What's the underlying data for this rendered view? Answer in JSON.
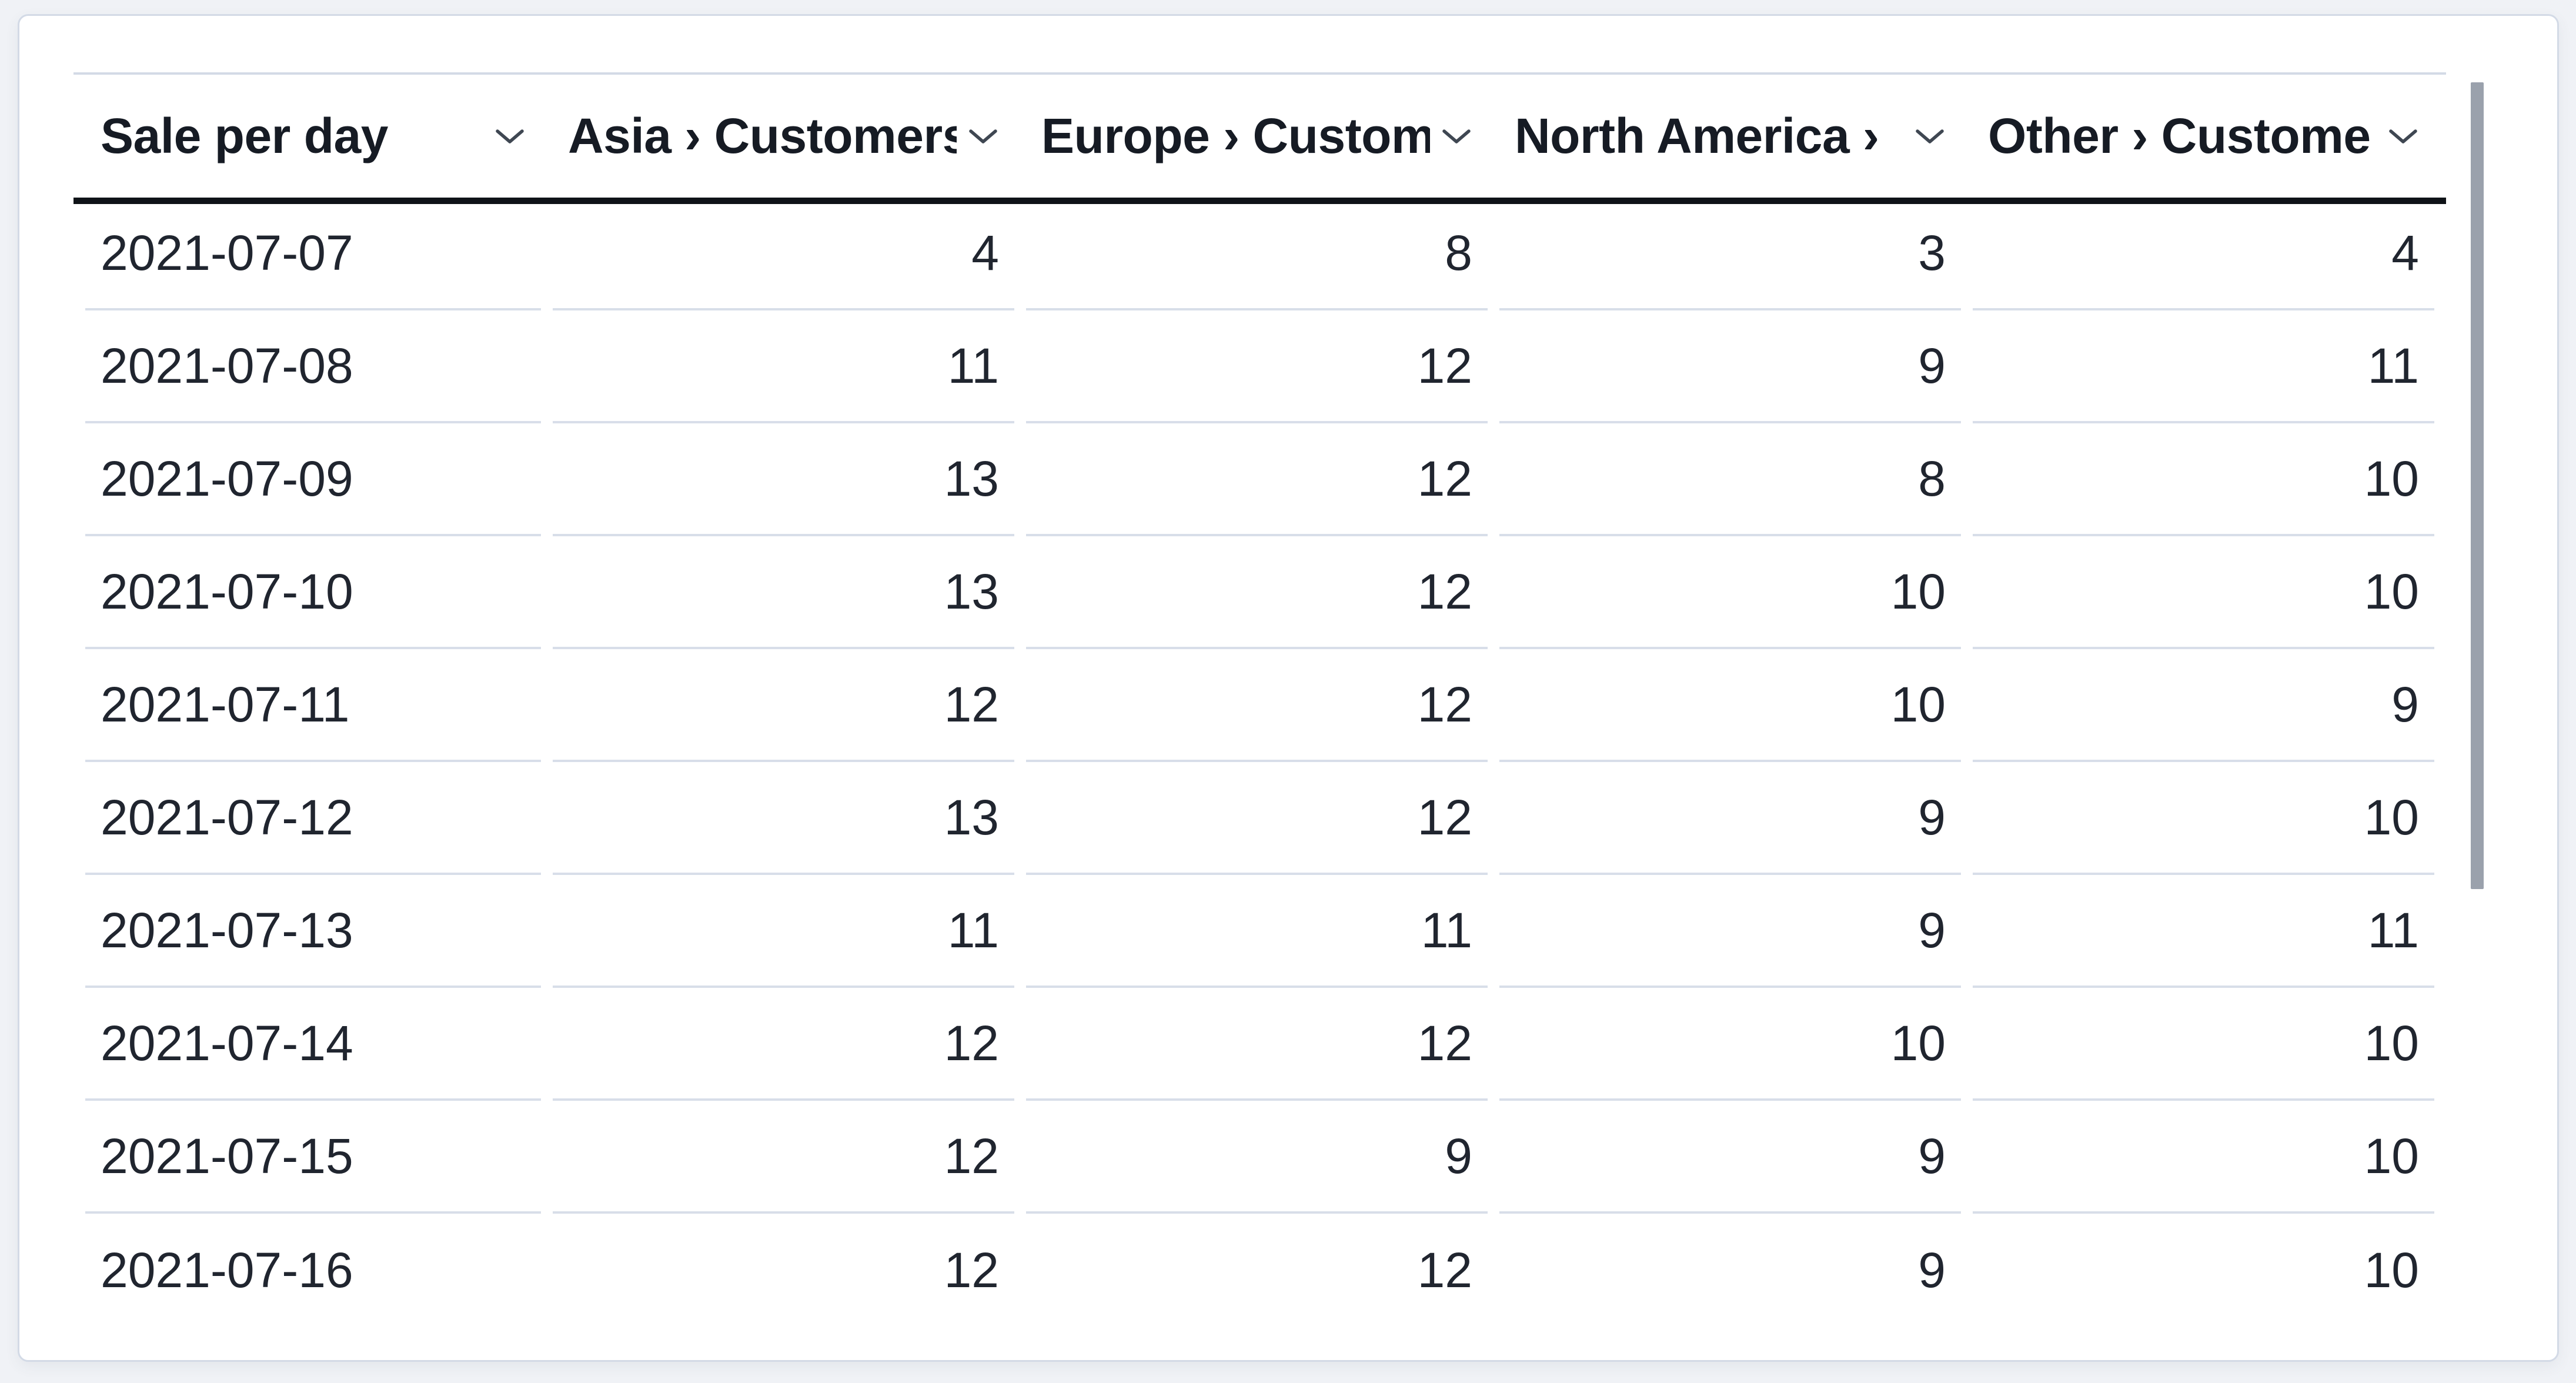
{
  "panel": {
    "type": "datatable"
  },
  "table": {
    "columns": [
      {
        "id": "date",
        "label": "Sale per day",
        "align": "left",
        "sort_icon": "chevron-down-icon"
      },
      {
        "id": "asia",
        "label": "Asia › Customers",
        "align": "right",
        "sort_icon": "chevron-down-icon"
      },
      {
        "id": "europe",
        "label": "Europe › Custom",
        "align": "right",
        "sort_icon": "chevron-down-icon"
      },
      {
        "id": "north-america",
        "label": "North America › ",
        "align": "right",
        "sort_icon": "chevron-down-icon"
      },
      {
        "id": "other",
        "label": "Other › Custome",
        "align": "right",
        "sort_icon": "chevron-down-icon"
      }
    ],
    "rows": [
      [
        "2021-07-07",
        "4",
        "8",
        "3",
        "4"
      ],
      [
        "2021-07-08",
        "11",
        "12",
        "9",
        "11"
      ],
      [
        "2021-07-09",
        "13",
        "12",
        "8",
        "10"
      ],
      [
        "2021-07-10",
        "13",
        "12",
        "10",
        "10"
      ],
      [
        "2021-07-11",
        "12",
        "12",
        "10",
        "9"
      ],
      [
        "2021-07-12",
        "13",
        "12",
        "9",
        "10"
      ],
      [
        "2021-07-13",
        "11",
        "11",
        "9",
        "11"
      ],
      [
        "2021-07-14",
        "12",
        "12",
        "10",
        "10"
      ],
      [
        "2021-07-15",
        "12",
        "9",
        "9",
        "10"
      ],
      [
        "2021-07-16",
        "12",
        "12",
        "9",
        "10"
      ]
    ]
  },
  "scrollbar": {
    "orientation": "vertical",
    "thumb_color": "#9aa1ac"
  },
  "colors": {
    "page_bg": "#f0f2f6",
    "card_bg": "#ffffff",
    "card_border": "#d3dae6",
    "row_divider": "#d8dee9",
    "header_underline": "#0f1318",
    "header_text": "#161b24",
    "cell_text": "#20252f",
    "chevron": "#3f4752"
  }
}
